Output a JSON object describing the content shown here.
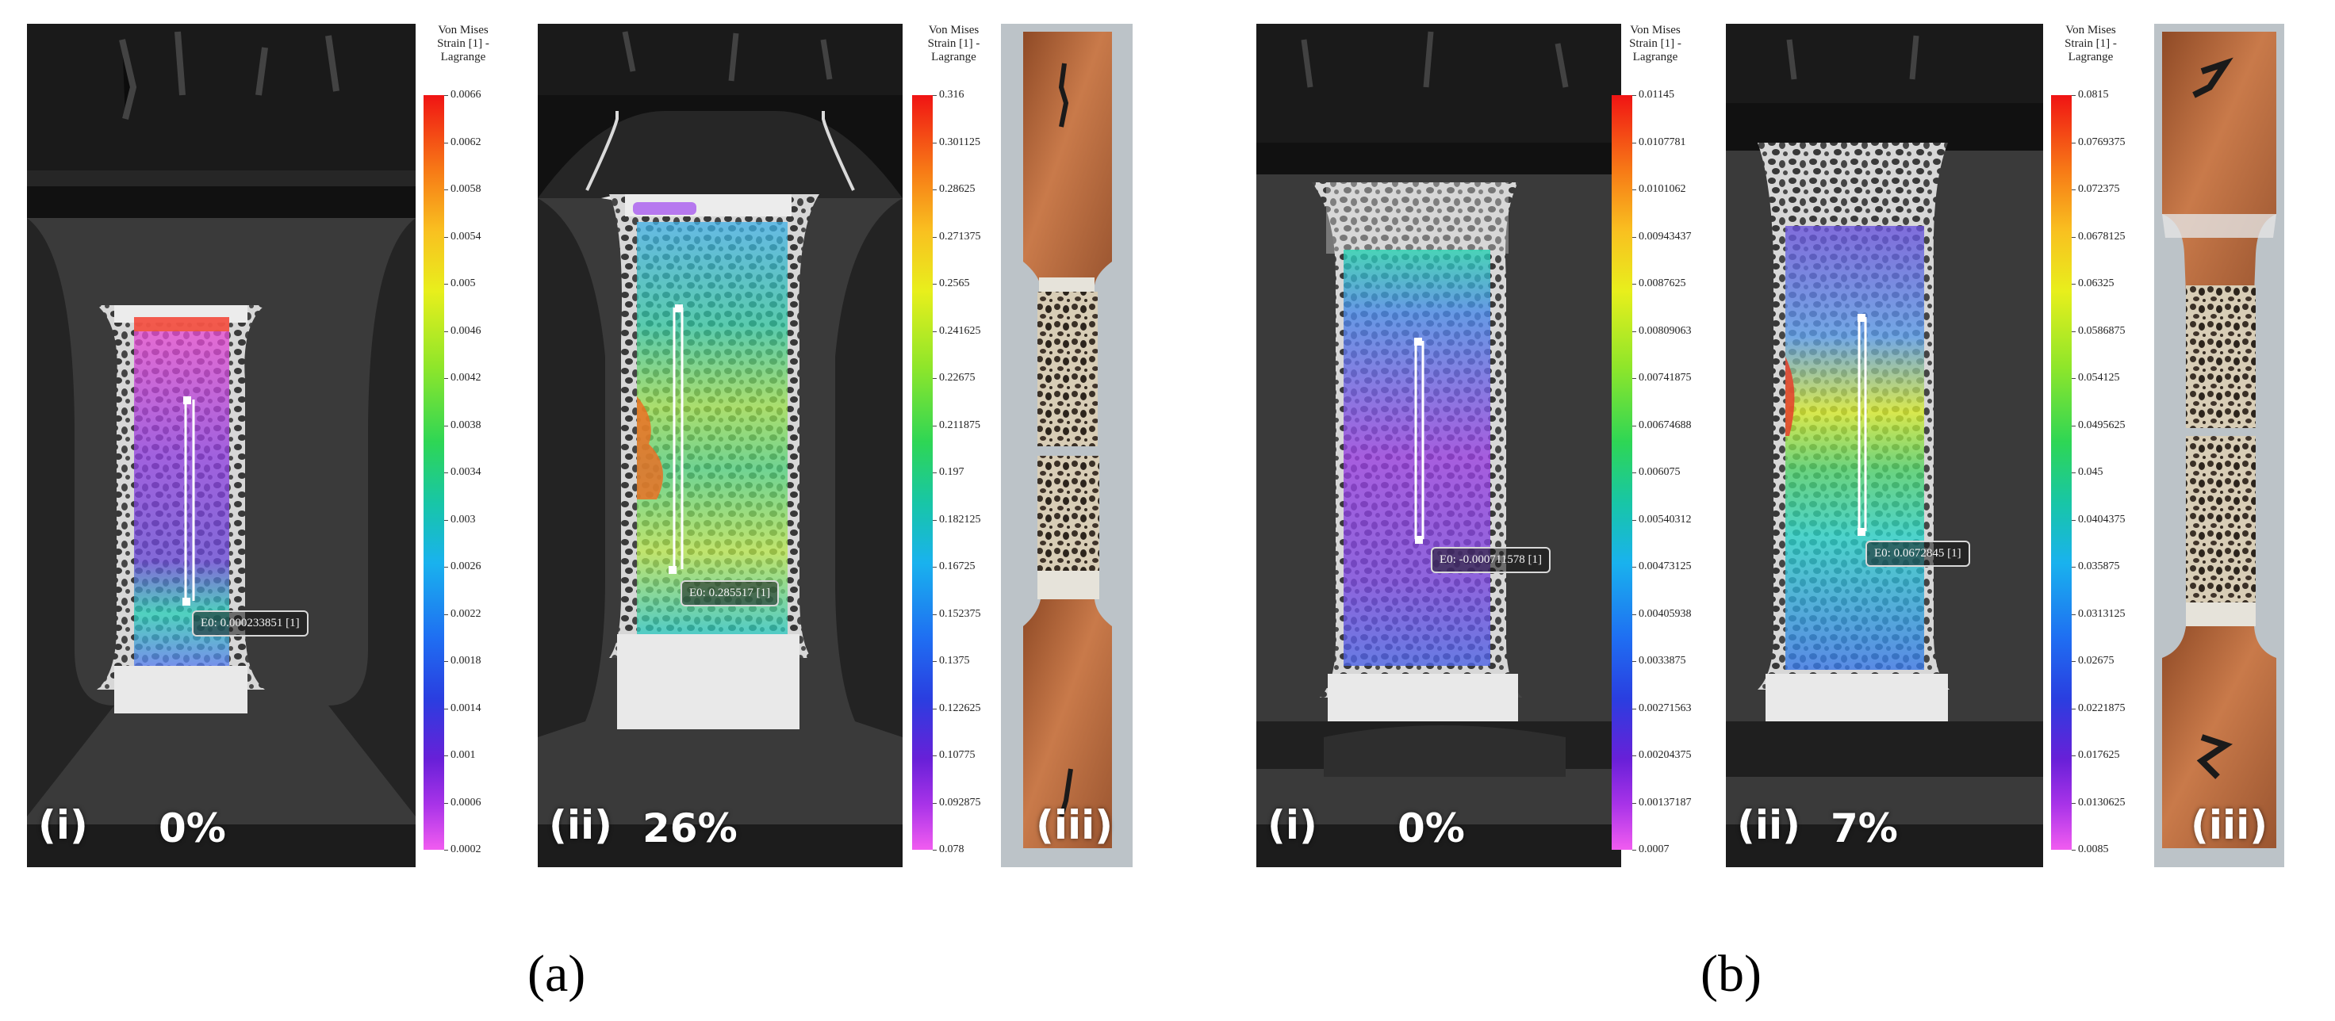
{
  "figure_a": {
    "caption": "(a)",
    "panel_i": {
      "tag": "(i)",
      "percent": "0%",
      "readout": "E0: 0.000233851 [1]"
    },
    "colorbar_1": {
      "title": [
        "Von Mises",
        "Strain [1] -",
        "Lagrange"
      ],
      "ticks": [
        "0.0066",
        "0.0062",
        "0.0058",
        "0.0054",
        "0.005",
        "0.0046",
        "0.0042",
        "0.0038",
        "0.0034",
        "0.003",
        "0.0026",
        "0.0022",
        "0.0018",
        "0.0014",
        "0.001",
        "0.0006",
        "0.0002"
      ]
    },
    "panel_ii": {
      "tag": "(ii)",
      "percent": "26%",
      "readout": "E0: 0.285517 [1]"
    },
    "colorbar_2": {
      "title": [
        "Von Mises",
        "Strain [1] -",
        "Lagrange"
      ],
      "ticks": [
        "0.316",
        "0.301125",
        "0.28625",
        "0.271375",
        "0.2565",
        "0.241625",
        "0.22675",
        "0.211875",
        "0.197",
        "0.182125",
        "0.16725",
        "0.152375",
        "0.1375",
        "0.122625",
        "0.10775",
        "0.092875",
        "0.078"
      ]
    },
    "panel_iii": {
      "tag": "(iii)"
    }
  },
  "figure_b": {
    "caption": "(b)",
    "panel_i": {
      "tag": "(i)",
      "percent": "0%",
      "readout": "E0: -0.000711578 [1]"
    },
    "colorbar_1": {
      "title": [
        "Von Mises",
        "Strain [1] -",
        "Lagrange"
      ],
      "ticks": [
        "0.01145",
        "0.0107781",
        "0.0101062",
        "0.00943437",
        "0.0087625",
        "0.00809063",
        "0.00741875",
        "0.00674688",
        "0.006075",
        "0.00540312",
        "0.00473125",
        "0.00405938",
        "0.0033875",
        "0.00271563",
        "0.00204375",
        "0.00137187",
        "0.0007"
      ]
    },
    "panel_ii": {
      "tag": "(ii)",
      "percent": "7%",
      "readout": "E0: 0.0672845 [1]"
    },
    "colorbar_2": {
      "title": [
        "Von Mises",
        "Strain [1] -",
        "Lagrange"
      ],
      "ticks": [
        "0.0815",
        "0.0769375",
        "0.072375",
        "0.0678125",
        "0.06325",
        "0.0586875",
        "0.054125",
        "0.0495625",
        "0.045",
        "0.0404375",
        "0.035875",
        "0.0313125",
        "0.02675",
        "0.0221875",
        "0.017625",
        "0.0130625",
        "0.0085"
      ]
    },
    "panel_iii": {
      "tag": "(iii)"
    }
  },
  "colors": {
    "background": "#ffffff",
    "scan_dark": "#262626",
    "specimen_light": "#dcdcdc",
    "copper": "#b8673a"
  }
}
